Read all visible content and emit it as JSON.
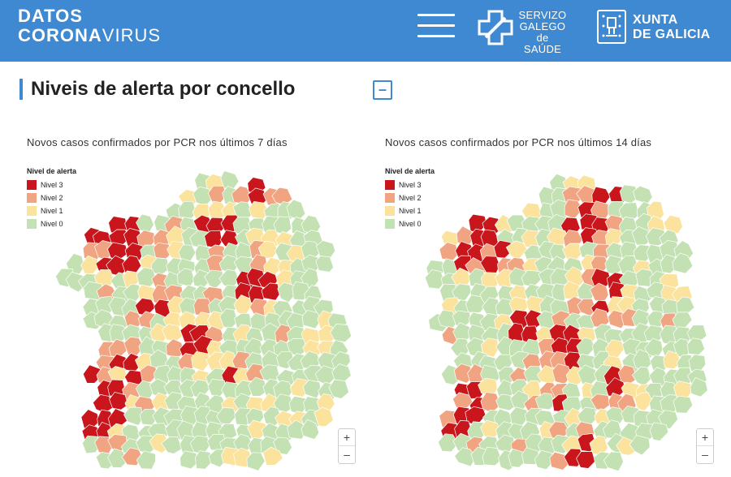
{
  "header": {
    "brand_line1": "DATOS",
    "brand_line2_bold": "CORONA",
    "brand_line2_rest": "VIRUS",
    "sgs_text": [
      "SERVIZO",
      "GALEGO",
      "de SAÚDE"
    ],
    "xunta_text": [
      "XUNTA",
      "DE GALICIA"
    ]
  },
  "section": {
    "title": "Niveis de alerta por concello",
    "collapse_label": "–"
  },
  "legend": {
    "title": "Nivel de alerta",
    "items": [
      {
        "label": "Nivel 3",
        "color": "#c8161c"
      },
      {
        "label": "Nivel 2",
        "color": "#f0a482"
      },
      {
        "label": "Nivel 1",
        "color": "#fbe29d"
      },
      {
        "label": "Nivel 0",
        "color": "#c3e1b3"
      }
    ]
  },
  "maps": [
    {
      "title": "Novos casos confirmados por PCR nos últimos 7 días",
      "zoom_in": "+",
      "zoom_out": "–"
    },
    {
      "title": "Novos casos confirmados por PCR nos últimos 14 días",
      "zoom_in": "+",
      "zoom_out": "–"
    }
  ],
  "colors": {
    "header_bg": "#3e89d1",
    "border": "#ffffff"
  }
}
